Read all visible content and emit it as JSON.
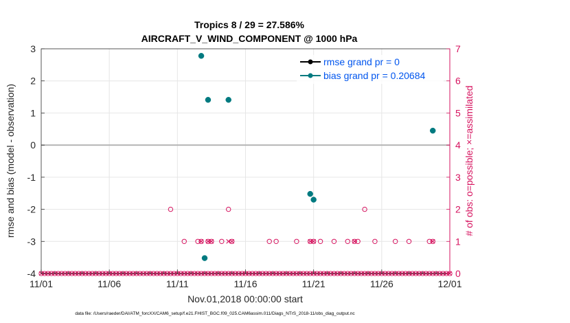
{
  "chart_data": {
    "type": "scatter",
    "title_line1": "Tropics 8 / 29 = 27.586%",
    "title_line2": "AIRCRAFT_V_WIND_COMPONENT @ 1000 hPa",
    "xlabel": "Nov.01,2018 00:00:00 start",
    "ylabel_left": "rmse and bias (model - observation)",
    "ylabel_right": "# of obs: o=possible; ×=assimilated",
    "footer": "data file: /Users/raeder/DAI/ATM_forcXX/CAM6_setup/f.e21.FHIST_BGC.f09_025.CAM6assim.011/Diags_NTrS_2018-11/obs_diag_output.nc",
    "x_ticks": [
      {
        "value": 0,
        "label": "11/01"
      },
      {
        "value": 5,
        "label": "11/06"
      },
      {
        "value": 10,
        "label": "11/11"
      },
      {
        "value": 15,
        "label": "11/16"
      },
      {
        "value": 20,
        "label": "11/21"
      },
      {
        "value": 25,
        "label": "11/26"
      },
      {
        "value": 30,
        "label": "12/01"
      }
    ],
    "xlim": [
      0,
      30
    ],
    "ylim_left": [
      -4,
      3
    ],
    "ylim_right": [
      0,
      7
    ],
    "y_ticks_left": [
      "-4",
      "-3",
      "-2",
      "-1",
      "0",
      "1",
      "2",
      "3"
    ],
    "y_ticks_right": [
      "0",
      "1",
      "2",
      "3",
      "4",
      "5",
      "6",
      "7"
    ],
    "grid": true,
    "legend_position": "top-right",
    "colors": {
      "rmse": "#000000",
      "bias": "#007a80",
      "obs": "#d6135f",
      "legend_text": "#0055ee",
      "zero_line": "#b5b5b5",
      "grid": "#e6e6e6"
    },
    "series": [
      {
        "name": "rmse grand pr = 0",
        "axis": "left",
        "x": [],
        "y": []
      },
      {
        "name": "bias grand pr = 0.20684",
        "axis": "left",
        "x": [
          11.75,
          12.25,
          13.75,
          12.0,
          19.75,
          20.0,
          28.75
        ],
        "y": [
          2.78,
          1.41,
          1.41,
          -3.52,
          -1.52,
          -1.7,
          0.45
        ]
      },
      {
        "name": "obs possible",
        "axis": "right",
        "marker": "o",
        "x": [
          9.5,
          10.5,
          11.5,
          11.75,
          12.25,
          12.5,
          13.25,
          13.75,
          14.0,
          16.75,
          17.25,
          18.75,
          19.75,
          20.0,
          20.5,
          21.5,
          22.5,
          23.0,
          23.25,
          23.75,
          24.5,
          26.0,
          27.0,
          28.5,
          28.75
        ],
        "y": [
          2,
          1,
          1,
          1,
          1,
          1,
          1,
          2,
          1,
          1,
          1,
          1,
          1,
          1,
          1,
          1,
          1,
          1,
          1,
          2,
          1,
          1,
          1,
          1,
          1
        ]
      },
      {
        "name": "obs assimilated",
        "axis": "right",
        "marker": "x",
        "x": [
          11.75,
          12.25,
          12.5,
          13.75,
          14.0,
          19.75,
          20.0,
          23.0,
          28.75
        ],
        "y": [
          1,
          1,
          1,
          1,
          1,
          1,
          1,
          1,
          1
        ]
      }
    ]
  }
}
